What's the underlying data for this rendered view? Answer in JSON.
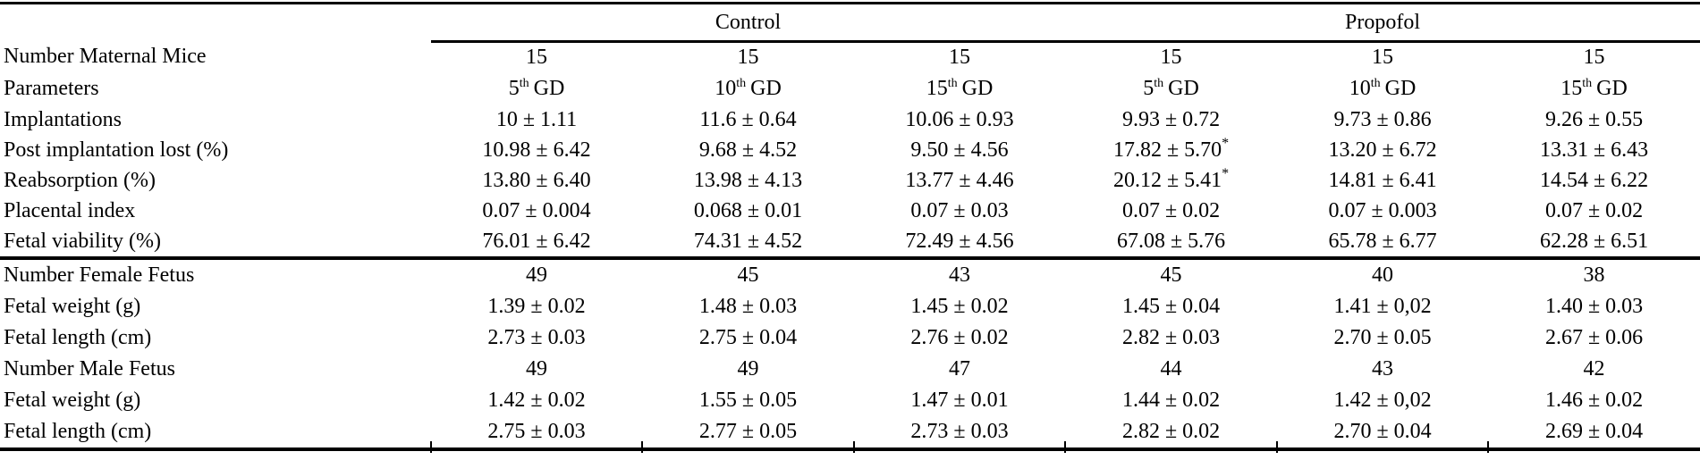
{
  "table": {
    "groups": [
      "Control",
      "Propofol"
    ],
    "maternal_row": {
      "label": "Number Maternal Mice",
      "c": [
        "15",
        "15",
        "15",
        "15",
        "15",
        "15"
      ]
    },
    "parameters_row": {
      "label": "Parameters",
      "cols": [
        {
          "num": "5",
          "ord": "th",
          "unit": "GD"
        },
        {
          "num": "10",
          "ord": "th",
          "unit": "GD"
        },
        {
          "num": "15",
          "ord": "th",
          "unit": "GD"
        },
        {
          "num": "5",
          "ord": "th",
          "unit": "GD"
        },
        {
          "num": "10",
          "ord": "th",
          "unit": "GD"
        },
        {
          "num": "15",
          "ord": "th",
          "unit": "GD"
        }
      ]
    },
    "section1": [
      {
        "label": "Implantations",
        "c": [
          "10 ± 1.11",
          "11.6 ± 0.64",
          "10.06 ± 0.93",
          "9.93 ± 0.72",
          "9.73 ± 0.86",
          "9.26 ± 0.55"
        ]
      },
      {
        "label": "Post implantation lost (%)",
        "c": [
          "10.98 ± 6.42",
          "9.68 ± 4.52",
          "9.50 ± 4.56",
          "17.82 ± 5.70",
          "13.20 ± 6.72",
          "13.31 ± 6.43"
        ],
        "sup": {
          "3": "*"
        }
      },
      {
        "label": "Reabsorption (%)",
        "c": [
          "13.80 ± 6.40",
          "13.98 ± 4.13",
          "13.77 ± 4.46",
          "20.12 ± 5.41",
          "14.81 ± 6.41",
          "14.54 ± 6.22"
        ],
        "sup": {
          "3": "*"
        }
      },
      {
        "label": "Placental index",
        "c": [
          "0.07 ± 0.004",
          "0.068 ± 0.01",
          "0.07 ± 0.03",
          "0.07 ± 0.02",
          "0.07 ± 0.003",
          "0.07 ± 0.02"
        ]
      },
      {
        "label": "Fetal viability (%)",
        "c": [
          "76.01 ± 6.42",
          "74.31 ± 4.52",
          "72.49 ± 4.56",
          "67.08 ± 5.76",
          "65.78 ± 6.77",
          "62.28 ± 6.51"
        ]
      }
    ],
    "section2": [
      {
        "label": "Number Female Fetus",
        "c": [
          "49",
          "45",
          "43",
          "45",
          "40",
          "38"
        ]
      },
      {
        "label": "Fetal weight (g)",
        "c": [
          "1.39 ± 0.02",
          "1.48 ± 0.03",
          "1.45 ± 0.02",
          "1.45 ± 0.04",
          "1.41 ± 0,02",
          "1.40 ± 0.03"
        ]
      },
      {
        "label": "Fetal length (cm)",
        "c": [
          "2.73 ± 0.03",
          "2.75 ± 0.04",
          "2.76 ± 0.02",
          "2.82 ± 0.03",
          "2.70 ± 0.05",
          "2.67 ± 0.06"
        ]
      },
      {
        "label": "Number Male Fetus",
        "c": [
          "49",
          "49",
          "47",
          "44",
          "43",
          "42"
        ]
      },
      {
        "label": "Fetal weight (g)",
        "c": [
          "1.42 ± 0.02",
          "1.55 ± 0.05",
          "1.47 ± 0.01",
          "1.44 ± 0.02",
          "1.42 ± 0,02",
          "1.46 ± 0.02"
        ]
      },
      {
        "label": "Fetal length (cm)",
        "c": [
          "2.75 ± 0.03",
          "2.77 ± 0.05",
          "2.73 ± 0.03",
          "2.82 ± 0.02",
          "2.70 ± 0.04",
          "2.69 ± 0.04"
        ]
      }
    ]
  }
}
